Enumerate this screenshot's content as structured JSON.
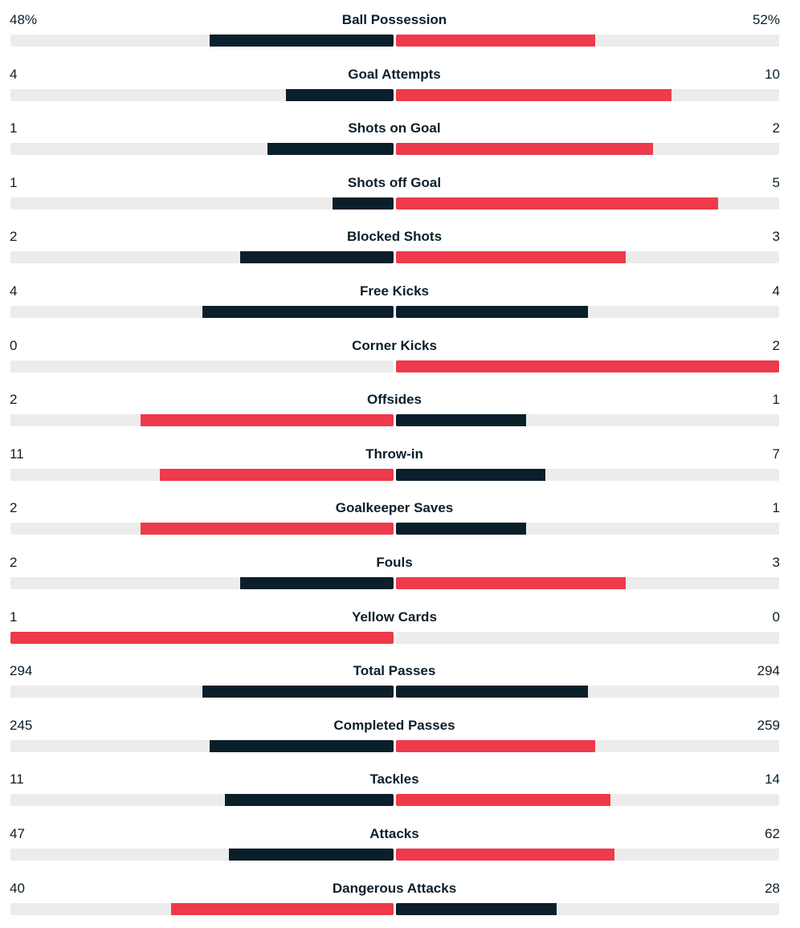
{
  "colors": {
    "dark": "#0b1f2a",
    "red": "#ee3a4a",
    "track": "#ececec"
  },
  "stats": [
    {
      "label": "Ball Possession",
      "home": "48%",
      "away": "52%",
      "home_bar": 0.48,
      "away_bar": 0.52,
      "home_color": "dark",
      "away_color": "red"
    },
    {
      "label": "Goal Attempts",
      "home": "4",
      "away": "10",
      "home_bar": 0.28,
      "away_bar": 0.72,
      "home_color": "dark",
      "away_color": "red"
    },
    {
      "label": "Shots on Goal",
      "home": "1",
      "away": "2",
      "home_bar": 0.33,
      "away_bar": 0.67,
      "home_color": "dark",
      "away_color": "red"
    },
    {
      "label": "Shots off Goal",
      "home": "1",
      "away": "5",
      "home_bar": 0.16,
      "away_bar": 0.84,
      "home_color": "dark",
      "away_color": "red"
    },
    {
      "label": "Blocked Shots",
      "home": "2",
      "away": "3",
      "home_bar": 0.4,
      "away_bar": 0.6,
      "home_color": "dark",
      "away_color": "red"
    },
    {
      "label": "Free Kicks",
      "home": "4",
      "away": "4",
      "home_bar": 0.5,
      "away_bar": 0.5,
      "home_color": "dark",
      "away_color": "dark"
    },
    {
      "label": "Corner Kicks",
      "home": "0",
      "away": "2",
      "home_bar": 0,
      "away_bar": 1,
      "home_color": "dark",
      "away_color": "red"
    },
    {
      "label": "Offsides",
      "home": "2",
      "away": "1",
      "home_bar": 0.66,
      "away_bar": 0.34,
      "home_color": "red",
      "away_color": "dark"
    },
    {
      "label": "Throw-in",
      "home": "11",
      "away": "7",
      "home_bar": 0.61,
      "away_bar": 0.39,
      "home_color": "red",
      "away_color": "dark"
    },
    {
      "label": "Goalkeeper Saves",
      "home": "2",
      "away": "1",
      "home_bar": 0.66,
      "away_bar": 0.34,
      "home_color": "red",
      "away_color": "dark"
    },
    {
      "label": "Fouls",
      "home": "2",
      "away": "3",
      "home_bar": 0.4,
      "away_bar": 0.6,
      "home_color": "dark",
      "away_color": "red"
    },
    {
      "label": "Yellow Cards",
      "home": "1",
      "away": "0",
      "home_bar": 1,
      "away_bar": 0,
      "home_color": "red",
      "away_color": "dark"
    },
    {
      "label": "Total Passes",
      "home": "294",
      "away": "294",
      "home_bar": 0.5,
      "away_bar": 0.5,
      "home_color": "dark",
      "away_color": "dark"
    },
    {
      "label": "Completed Passes",
      "home": "245",
      "away": "259",
      "home_bar": 0.48,
      "away_bar": 0.52,
      "home_color": "dark",
      "away_color": "red"
    },
    {
      "label": "Tackles",
      "home": "11",
      "away": "14",
      "home_bar": 0.44,
      "away_bar": 0.56,
      "home_color": "dark",
      "away_color": "red"
    },
    {
      "label": "Attacks",
      "home": "47",
      "away": "62",
      "home_bar": 0.43,
      "away_bar": 0.57,
      "home_color": "dark",
      "away_color": "red"
    },
    {
      "label": "Dangerous Attacks",
      "home": "40",
      "away": "28",
      "home_bar": 0.58,
      "away_bar": 0.42,
      "home_color": "red",
      "away_color": "dark"
    }
  ]
}
